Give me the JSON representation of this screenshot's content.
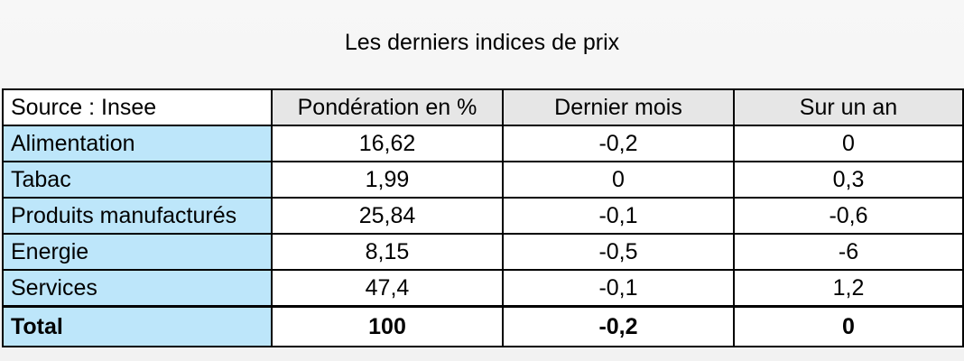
{
  "chart_data": {
    "type": "table",
    "title": "Les derniers indices de prix",
    "columns": [
      "Source : Insee",
      "Pondération en %",
      "Dernier mois",
      "Sur un an"
    ],
    "rows": [
      [
        "Alimentation",
        "16,62",
        "-0,2",
        "0"
      ],
      [
        "Tabac",
        "1,99",
        "0",
        "0,3"
      ],
      [
        "Produits manufacturés",
        "25,84",
        "-0,1",
        "-0,6"
      ],
      [
        "Energie",
        "8,15",
        "-0,5",
        "-6"
      ],
      [
        "Services",
        "47,4",
        "-0,1",
        "1,2"
      ]
    ],
    "total": [
      "Total",
      "100",
      "-0,2",
      "0"
    ],
    "colors": {
      "label_column_bg": "#bde6fa",
      "header_bg": "#e6e6e6"
    }
  }
}
